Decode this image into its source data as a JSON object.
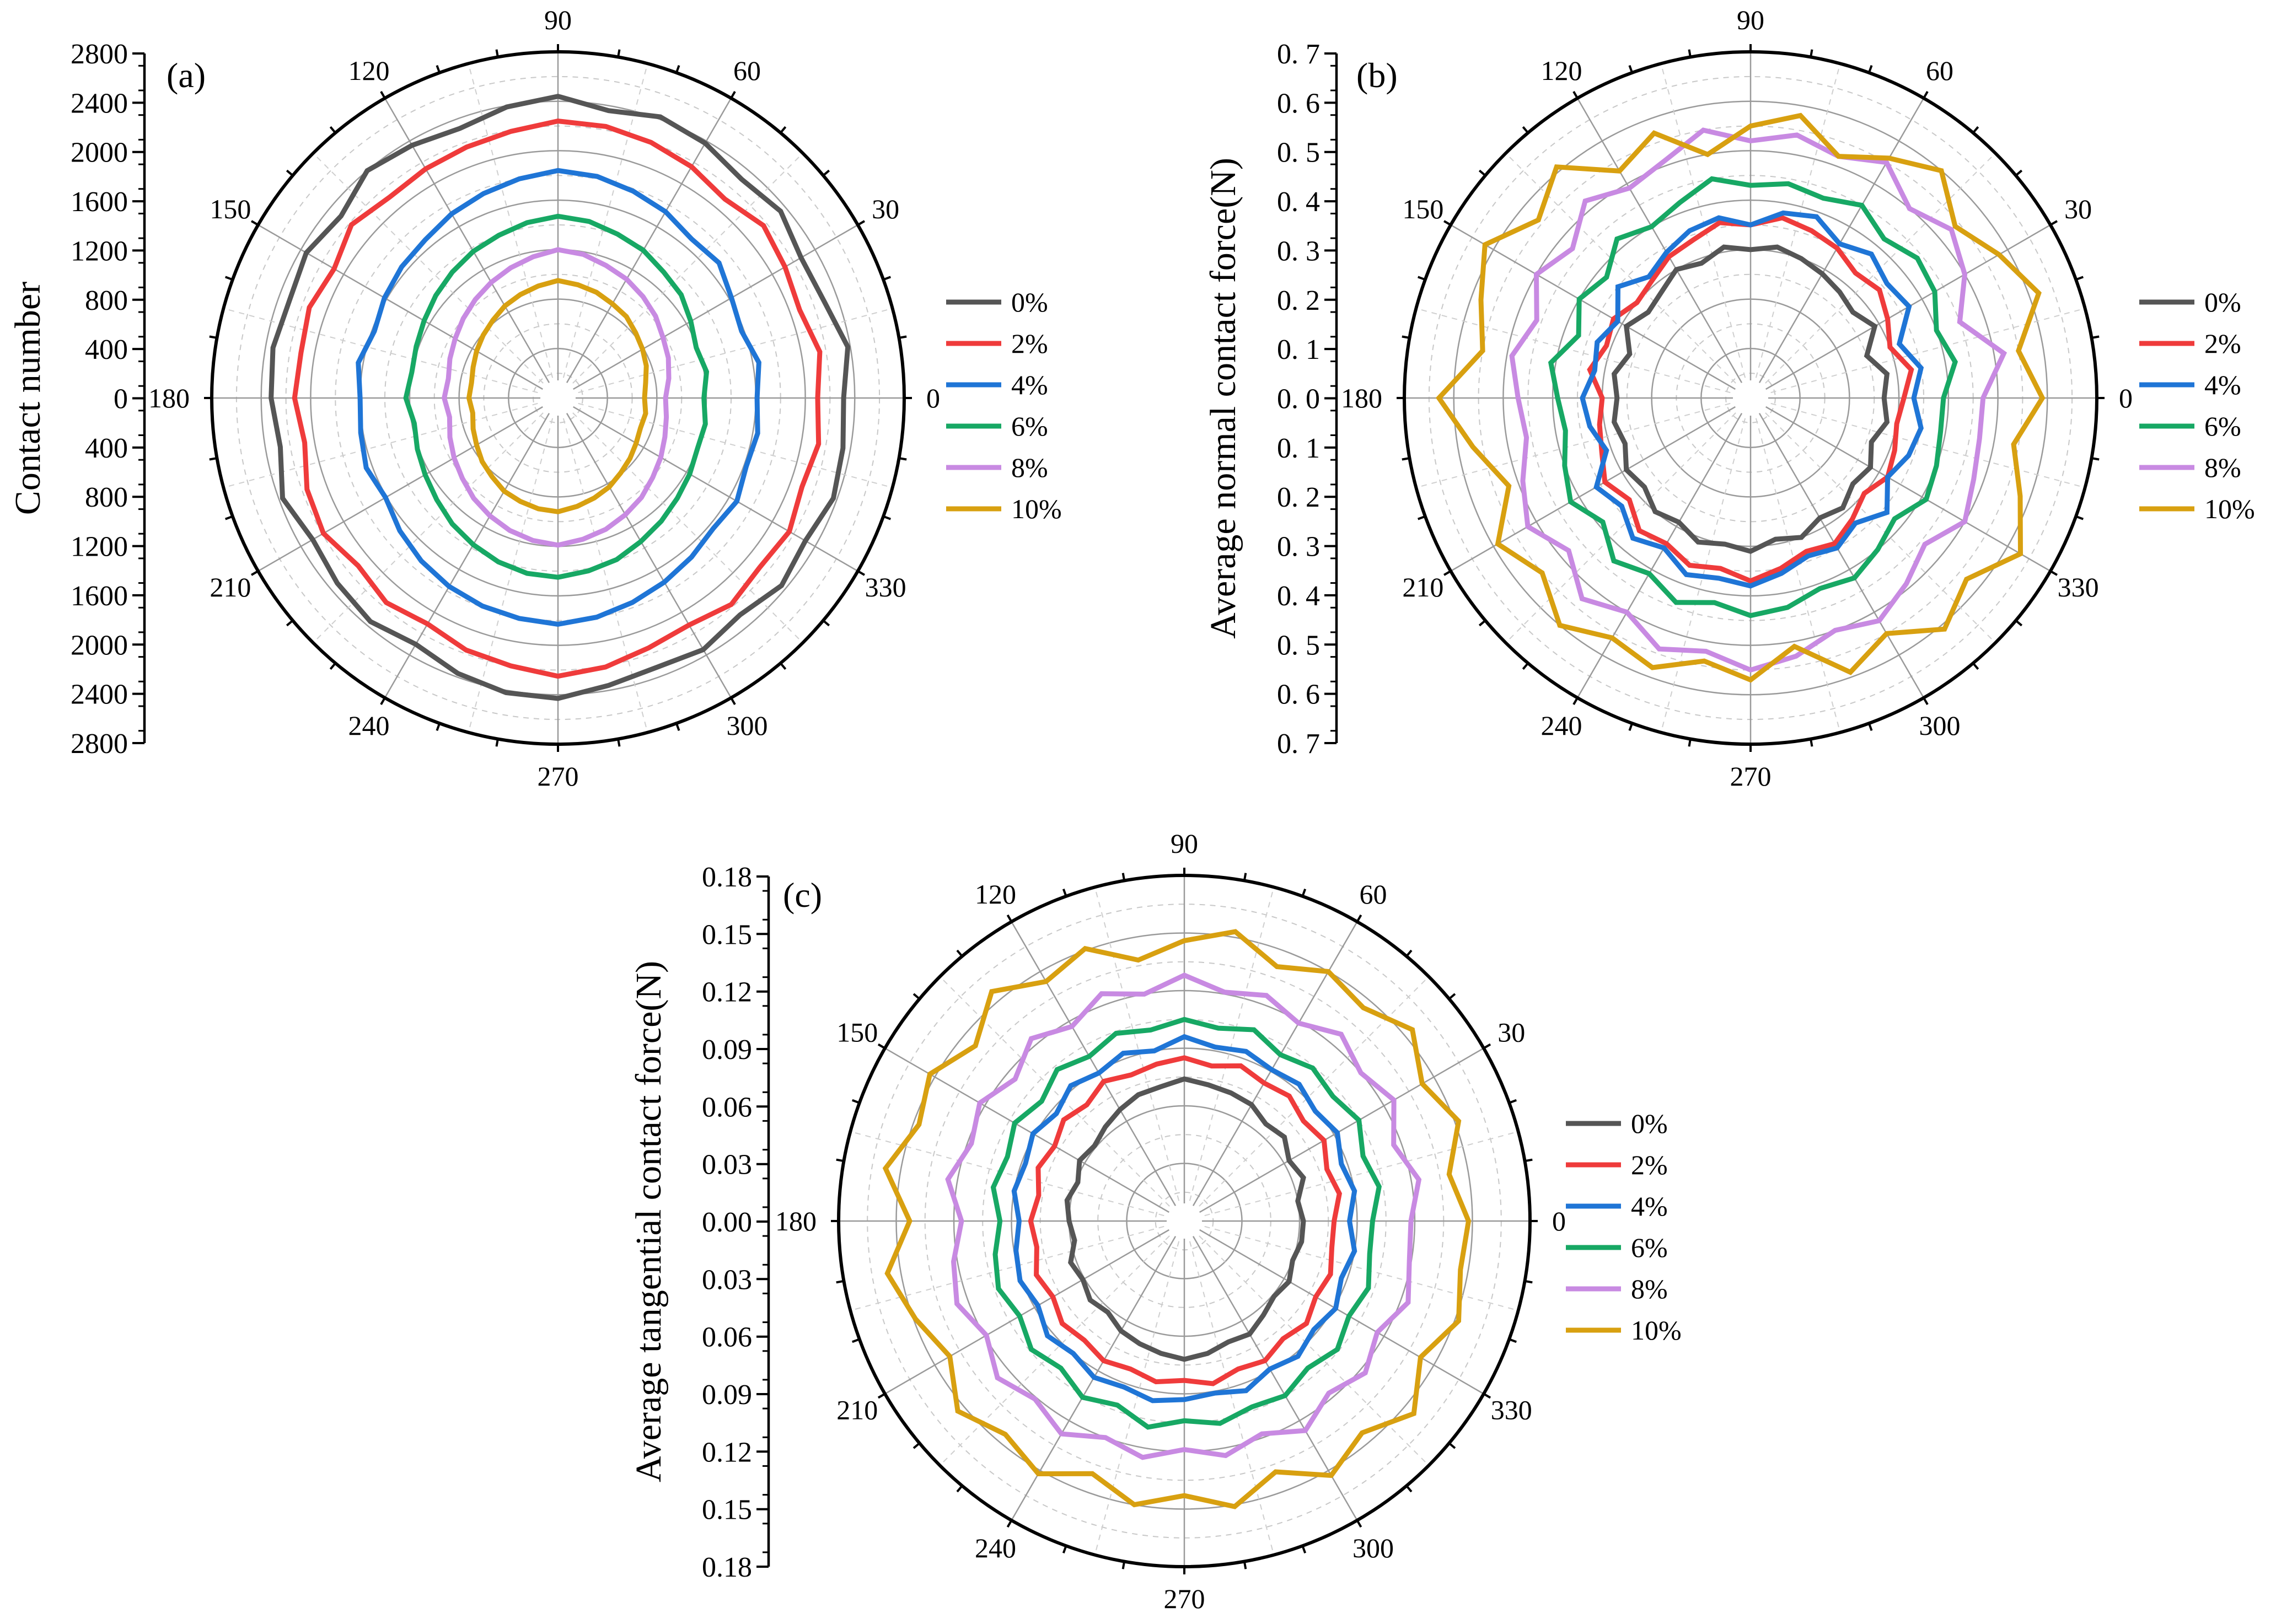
{
  "chart_data": [
    {
      "type": "line",
      "projection": "polar",
      "panel_label": "(a)",
      "ylabel": "Contact number",
      "radial_range": [
        0,
        2800
      ],
      "radial_ticks": [
        "2800",
        "2400",
        "2000",
        "1600",
        "1200",
        "800",
        "400",
        "0"
      ],
      "angular_ticks": [
        "0",
        "30",
        "60",
        "90",
        "120",
        "150",
        "180",
        "210",
        "240",
        "270",
        "300",
        "330"
      ],
      "angle_step_deg": 10,
      "legend_position": "right",
      "series": [
        {
          "name": "0%",
          "color": "#555555",
          "values": [
            2310,
            2380,
            2290,
            2270,
            2350,
            2310,
            2380,
            2420,
            2360,
            2440,
            2390,
            2320,
            2360,
            2400,
            2290,
            2350,
            2310,
            2340,
            2320,
            2280,
            2370,
            2290,
            2330,
            2360,
            2300,
            2370,
            2420,
            2430,
            2360,
            2320,
            2350,
            2290,
            2360,
            2310,
            2370,
            2340
          ]
        },
        {
          "name": "2%",
          "color": "#ef3b3b",
          "values": [
            2100,
            2150,
            2080,
            2120,
            2170,
            2100,
            2160,
            2200,
            2230,
            2240,
            2190,
            2160,
            2140,
            2120,
            2180,
            2090,
            2140,
            2110,
            2130,
            2080,
            2160,
            2190,
            2110,
            2160,
            2110,
            2170,
            2200,
            2250,
            2210,
            2150,
            2120,
            2180,
            2130,
            2160,
            2100,
            2140
          ]
        },
        {
          "name": "4%",
          "color": "#1f75d6",
          "values": [
            1610,
            1650,
            1580,
            1620,
            1700,
            1680,
            1740,
            1780,
            1820,
            1840,
            1800,
            1760,
            1720,
            1670,
            1650,
            1620,
            1580,
            1640,
            1600,
            1620,
            1650,
            1610,
            1670,
            1720,
            1760,
            1790,
            1810,
            1830,
            1800,
            1760,
            1720,
            1680,
            1640,
            1670,
            1620,
            1640
          ]
        },
        {
          "name": "6%",
          "color": "#17a864",
          "values": [
            1180,
            1220,
            1190,
            1240,
            1300,
            1330,
            1380,
            1410,
            1450,
            1470,
            1440,
            1400,
            1370,
            1330,
            1290,
            1250,
            1220,
            1200,
            1230,
            1180,
            1210,
            1240,
            1280,
            1330,
            1370,
            1410,
            1440,
            1450,
            1420,
            1390,
            1340,
            1300,
            1260,
            1230,
            1200,
            1210
          ]
        },
        {
          "name": "8%",
          "color": "#c88ae2",
          "values": [
            870,
            910,
            950,
            980,
            1030,
            1070,
            1110,
            1140,
            1180,
            1200,
            1160,
            1120,
            1080,
            1040,
            1000,
            960,
            930,
            900,
            920,
            890,
            930,
            970,
            1010,
            1060,
            1100,
            1140,
            1170,
            1190,
            1160,
            1130,
            1090,
            1050,
            1000,
            960,
            920,
            890
          ]
        },
        {
          "name": "10%",
          "color": "#d8a010",
          "values": [
            700,
            720,
            760,
            790,
            820,
            860,
            880,
            910,
            930,
            950,
            920,
            890,
            860,
            820,
            790,
            760,
            730,
            710,
            720,
            700,
            730,
            760,
            800,
            830,
            870,
            890,
            910,
            920,
            890,
            860,
            830,
            790,
            760,
            730,
            710,
            720
          ]
        }
      ]
    },
    {
      "type": "line",
      "projection": "polar",
      "panel_label": "(b)",
      "ylabel": "Average normal contact force(N)",
      "radial_range": [
        0,
        0.7
      ],
      "radial_ticks": [
        "0. 7",
        "0. 6",
        "0. 5",
        "0. 4",
        "0. 3",
        "0. 2",
        "0. 1",
        "0. 0"
      ],
      "angular_ticks": [
        "0",
        "30",
        "60",
        "90",
        "120",
        "150",
        "180",
        "210",
        "240",
        "270",
        "300",
        "330"
      ],
      "angle_step_deg": 10,
      "legend_position": "right",
      "series": [
        {
          "name": "0%",
          "color": "#555555",
          "values": [
            0.27,
            0.28,
            0.25,
            0.29,
            0.27,
            0.28,
            0.29,
            0.3,
            0.31,
            0.3,
            0.31,
            0.29,
            0.3,
            0.28,
            0.27,
            0.29,
            0.26,
            0.28,
            0.27,
            0.28,
            0.27,
            0.29,
            0.28,
            0.3,
            0.29,
            0.31,
            0.3,
            0.31,
            0.29,
            0.3,
            0.28,
            0.29,
            0.27,
            0.28,
            0.26,
            0.28
          ]
        },
        {
          "name": "2%",
          "color": "#ef3b3b",
          "values": [
            0.31,
            0.33,
            0.3,
            0.32,
            0.34,
            0.33,
            0.35,
            0.36,
            0.37,
            0.35,
            0.36,
            0.34,
            0.33,
            0.31,
            0.3,
            0.32,
            0.31,
            0.33,
            0.3,
            0.31,
            0.32,
            0.34,
            0.32,
            0.35,
            0.34,
            0.36,
            0.35,
            0.37,
            0.35,
            0.33,
            0.34,
            0.32,
            0.3,
            0.32,
            0.31,
            0.3
          ]
        },
        {
          "name": "4%",
          "color": "#1f75d6",
          "values": [
            0.33,
            0.35,
            0.32,
            0.37,
            0.36,
            0.38,
            0.36,
            0.39,
            0.38,
            0.35,
            0.37,
            0.36,
            0.34,
            0.32,
            0.35,
            0.31,
            0.33,
            0.32,
            0.34,
            0.33,
            0.31,
            0.36,
            0.34,
            0.37,
            0.35,
            0.38,
            0.37,
            0.38,
            0.36,
            0.34,
            0.35,
            0.33,
            0.36,
            0.32,
            0.34,
            0.35
          ]
        },
        {
          "name": "6%",
          "color": "#17a864",
          "values": [
            0.39,
            0.42,
            0.4,
            0.43,
            0.44,
            0.42,
            0.45,
            0.43,
            0.44,
            0.43,
            0.45,
            0.42,
            0.4,
            0.42,
            0.38,
            0.4,
            0.37,
            0.41,
            0.39,
            0.38,
            0.4,
            0.42,
            0.39,
            0.43,
            0.41,
            0.44,
            0.42,
            0.44,
            0.43,
            0.41,
            0.42,
            0.4,
            0.38,
            0.41,
            0.4,
            0.39
          ]
        },
        {
          "name": "8%",
          "color": "#c88ae2",
          "values": [
            0.47,
            0.52,
            0.45,
            0.5,
            0.53,
            0.5,
            0.55,
            0.52,
            0.54,
            0.52,
            0.55,
            0.51,
            0.49,
            0.52,
            0.47,
            0.5,
            0.46,
            0.49,
            0.47,
            0.46,
            0.49,
            0.52,
            0.48,
            0.53,
            0.5,
            0.54,
            0.52,
            0.55,
            0.53,
            0.5,
            0.52,
            0.49,
            0.46,
            0.5,
            0.48,
            0.47
          ]
        },
        {
          "name": "10%",
          "color": "#d8a010",
          "values": [
            0.59,
            0.55,
            0.62,
            0.58,
            0.54,
            0.6,
            0.56,
            0.52,
            0.58,
            0.55,
            0.5,
            0.57,
            0.53,
            0.61,
            0.56,
            0.62,
            0.58,
            0.55,
            0.63,
            0.57,
            0.52,
            0.59,
            0.55,
            0.6,
            0.56,
            0.58,
            0.54,
            0.57,
            0.51,
            0.59,
            0.55,
            0.61,
            0.57,
            0.63,
            0.58,
            0.54
          ]
        }
      ]
    },
    {
      "type": "line",
      "projection": "polar",
      "panel_label": "(c)",
      "ylabel": "Average tangential contact force(N)",
      "radial_range": [
        0,
        0.18
      ],
      "radial_ticks": [
        "0.18",
        "0.15",
        "0.12",
        "0.09",
        "0.06",
        "0.03",
        "0.00"
      ],
      "angular_ticks": [
        "0",
        "30",
        "60",
        "90",
        "120",
        "150",
        "180",
        "210",
        "240",
        "270",
        "300",
        "330"
      ],
      "angle_step_deg": 10,
      "legend_position": "right",
      "series": [
        {
          "name": "0%",
          "color": "#555555",
          "values": [
            0.062,
            0.06,
            0.066,
            0.063,
            0.068,
            0.066,
            0.07,
            0.071,
            0.072,
            0.074,
            0.071,
            0.07,
            0.067,
            0.064,
            0.061,
            0.063,
            0.059,
            0.062,
            0.06,
            0.058,
            0.063,
            0.061,
            0.064,
            0.062,
            0.066,
            0.068,
            0.07,
            0.072,
            0.07,
            0.067,
            0.068,
            0.064,
            0.061,
            0.063,
            0.06,
            0.062
          ]
        },
        {
          "name": "2%",
          "color": "#ef3b3b",
          "values": [
            0.078,
            0.082,
            0.079,
            0.084,
            0.081,
            0.085,
            0.083,
            0.086,
            0.082,
            0.085,
            0.083,
            0.081,
            0.084,
            0.079,
            0.082,
            0.078,
            0.081,
            0.077,
            0.08,
            0.078,
            0.082,
            0.079,
            0.083,
            0.081,
            0.084,
            0.082,
            0.085,
            0.083,
            0.086,
            0.082,
            0.084,
            0.08,
            0.083,
            0.079,
            0.081,
            0.078
          ]
        },
        {
          "name": "4%",
          "color": "#1f75d6",
          "values": [
            0.086,
            0.09,
            0.087,
            0.092,
            0.089,
            0.093,
            0.091,
            0.094,
            0.092,
            0.096,
            0.09,
            0.093,
            0.089,
            0.092,
            0.087,
            0.091,
            0.088,
            0.09,
            0.086,
            0.089,
            0.091,
            0.088,
            0.093,
            0.09,
            0.094,
            0.092,
            0.095,
            0.093,
            0.091,
            0.094,
            0.089,
            0.092,
            0.088,
            0.091,
            0.087,
            0.09
          ]
        },
        {
          "name": "6%",
          "color": "#17a864",
          "values": [
            0.098,
            0.103,
            0.099,
            0.105,
            0.101,
            0.104,
            0.1,
            0.106,
            0.102,
            0.105,
            0.101,
            0.104,
            0.099,
            0.103,
            0.097,
            0.102,
            0.098,
            0.101,
            0.096,
            0.1,
            0.103,
            0.099,
            0.104,
            0.1,
            0.106,
            0.102,
            0.109,
            0.104,
            0.107,
            0.103,
            0.105,
            0.1,
            0.104,
            0.099,
            0.102,
            0.098
          ]
        },
        {
          "name": "8%",
          "color": "#c88ae2",
          "values": [
            0.118,
            0.124,
            0.116,
            0.126,
            0.12,
            0.127,
            0.119,
            0.125,
            0.121,
            0.128,
            0.12,
            0.126,
            0.117,
            0.124,
            0.115,
            0.123,
            0.118,
            0.125,
            0.116,
            0.122,
            0.126,
            0.119,
            0.127,
            0.121,
            0.128,
            0.12,
            0.125,
            0.119,
            0.124,
            0.118,
            0.126,
            0.117,
            0.123,
            0.116,
            0.124,
            0.119
          ]
        },
        {
          "name": "10%",
          "color": "#d8a010",
          "values": [
            0.148,
            0.14,
            0.152,
            0.143,
            0.155,
            0.145,
            0.15,
            0.141,
            0.153,
            0.146,
            0.138,
            0.151,
            0.144,
            0.156,
            0.142,
            0.153,
            0.147,
            0.158,
            0.143,
            0.157,
            0.149,
            0.141,
            0.154,
            0.145,
            0.152,
            0.14,
            0.15,
            0.143,
            0.151,
            0.139,
            0.153,
            0.144,
            0.156,
            0.142,
            0.152,
            0.146
          ]
        }
      ]
    }
  ]
}
